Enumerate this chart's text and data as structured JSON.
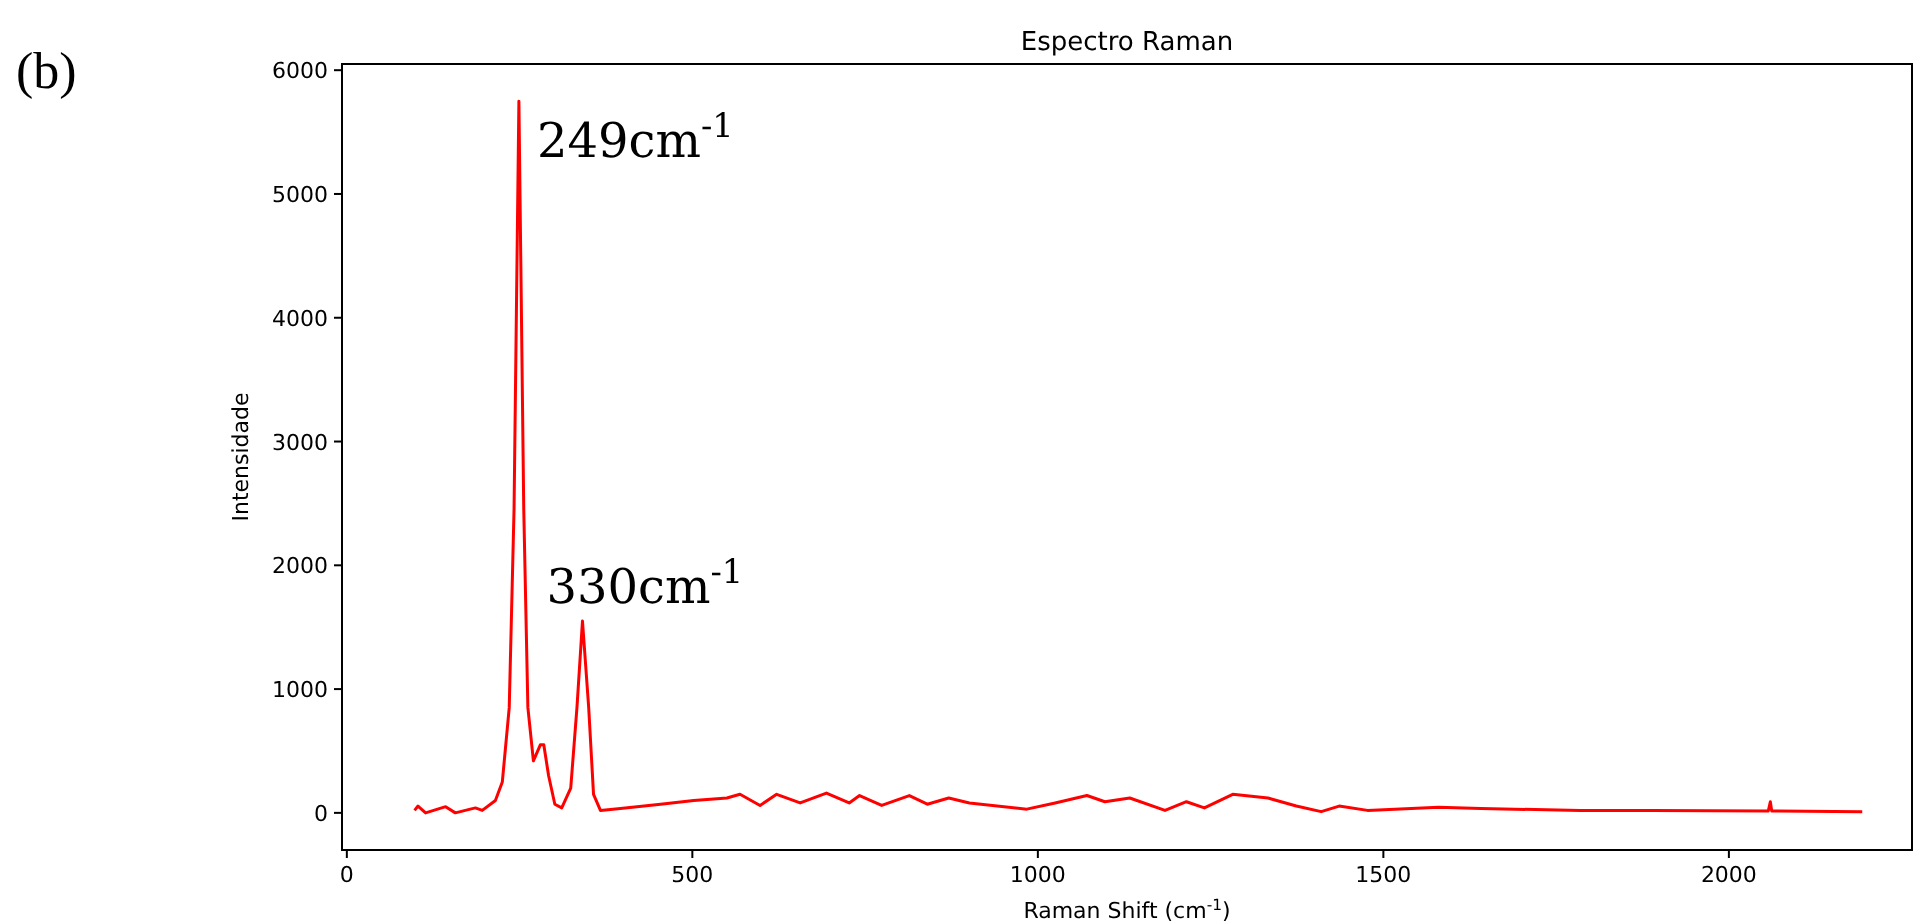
{
  "chart_data": {
    "type": "line",
    "title": "Espectro Raman",
    "xlabel": "Raman Shift (cm$^{-1}$)",
    "ylabel": "Intensidade",
    "annotations": [
      "(b)",
      {
        "text": "249cm$^{-1}$",
        "x": 249,
        "y": 5750
      },
      {
        "text": "330cm$^{-1}$",
        "x": 341,
        "y": 1550
      }
    ],
    "xlim": [
      -7,
      2265
    ],
    "ylim": [
      -300,
      6050
    ],
    "xticks": [
      0,
      500,
      1000,
      1500,
      2000
    ],
    "yticks": [
      0,
      1000,
      2000,
      3000,
      4000,
      5000,
      6000
    ],
    "series": [
      {
        "color": "#ff0000",
        "x": [
          98,
          103,
          114,
          143,
          157,
          186,
          196,
          215,
          225,
          235,
          242,
          249,
          256,
          262,
          270,
          280,
          285,
          292,
          301,
          311,
          324,
          333,
          341,
          350,
          357,
          367,
          396,
          454,
          502,
          550,
          569,
          598,
          622,
          656,
          694,
          727,
          742,
          774,
          814,
          840,
          871,
          901,
          984,
          1025,
          1071,
          1097,
          1133,
          1184,
          1215,
          1241,
          1282,
          1333,
          1374,
          1410,
          1436,
          1477,
          1580,
          1641,
          1785,
          1888,
          2057,
          2060,
          2062,
          2193
        ],
        "values": [
          20,
          55,
          0,
          50,
          0,
          40,
          20,
          100,
          250,
          850,
          2460,
          5750,
          2460,
          850,
          420,
          550,
          550,
          300,
          70,
          40,
          200,
          850,
          1550,
          850,
          150,
          20,
          35,
          70,
          100,
          120,
          150,
          60,
          150,
          80,
          160,
          80,
          140,
          60,
          140,
          70,
          120,
          80,
          30,
          80,
          140,
          90,
          120,
          20,
          90,
          40,
          150,
          120,
          55,
          10,
          55,
          20,
          45,
          35,
          20,
          20,
          15,
          90,
          15,
          10
        ]
      }
    ]
  }
}
